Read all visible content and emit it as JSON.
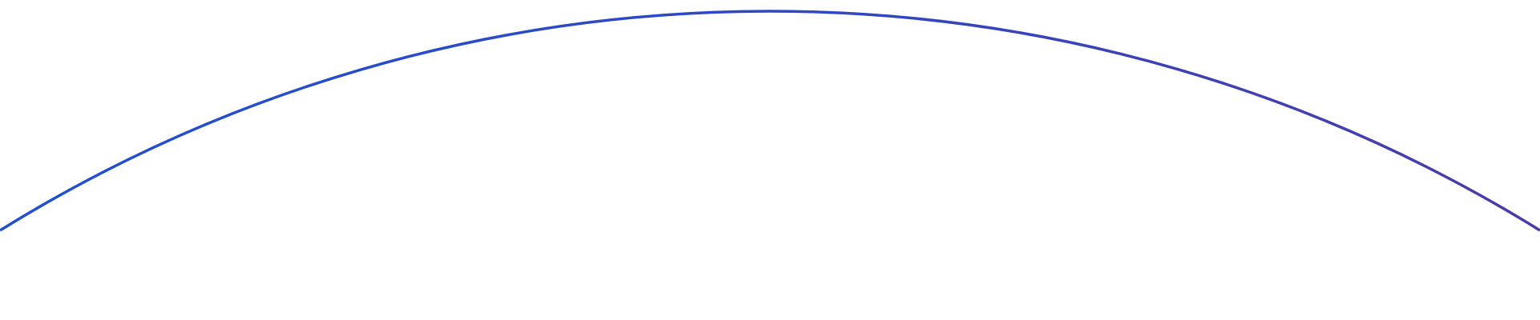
{
  "background_color": "#ffffff",
  "arc": {
    "gradient_start_color": "#1f50d2",
    "gradient_mid_color": "#2f48c4",
    "gradient_end_color": "#4a3ba8"
  }
}
